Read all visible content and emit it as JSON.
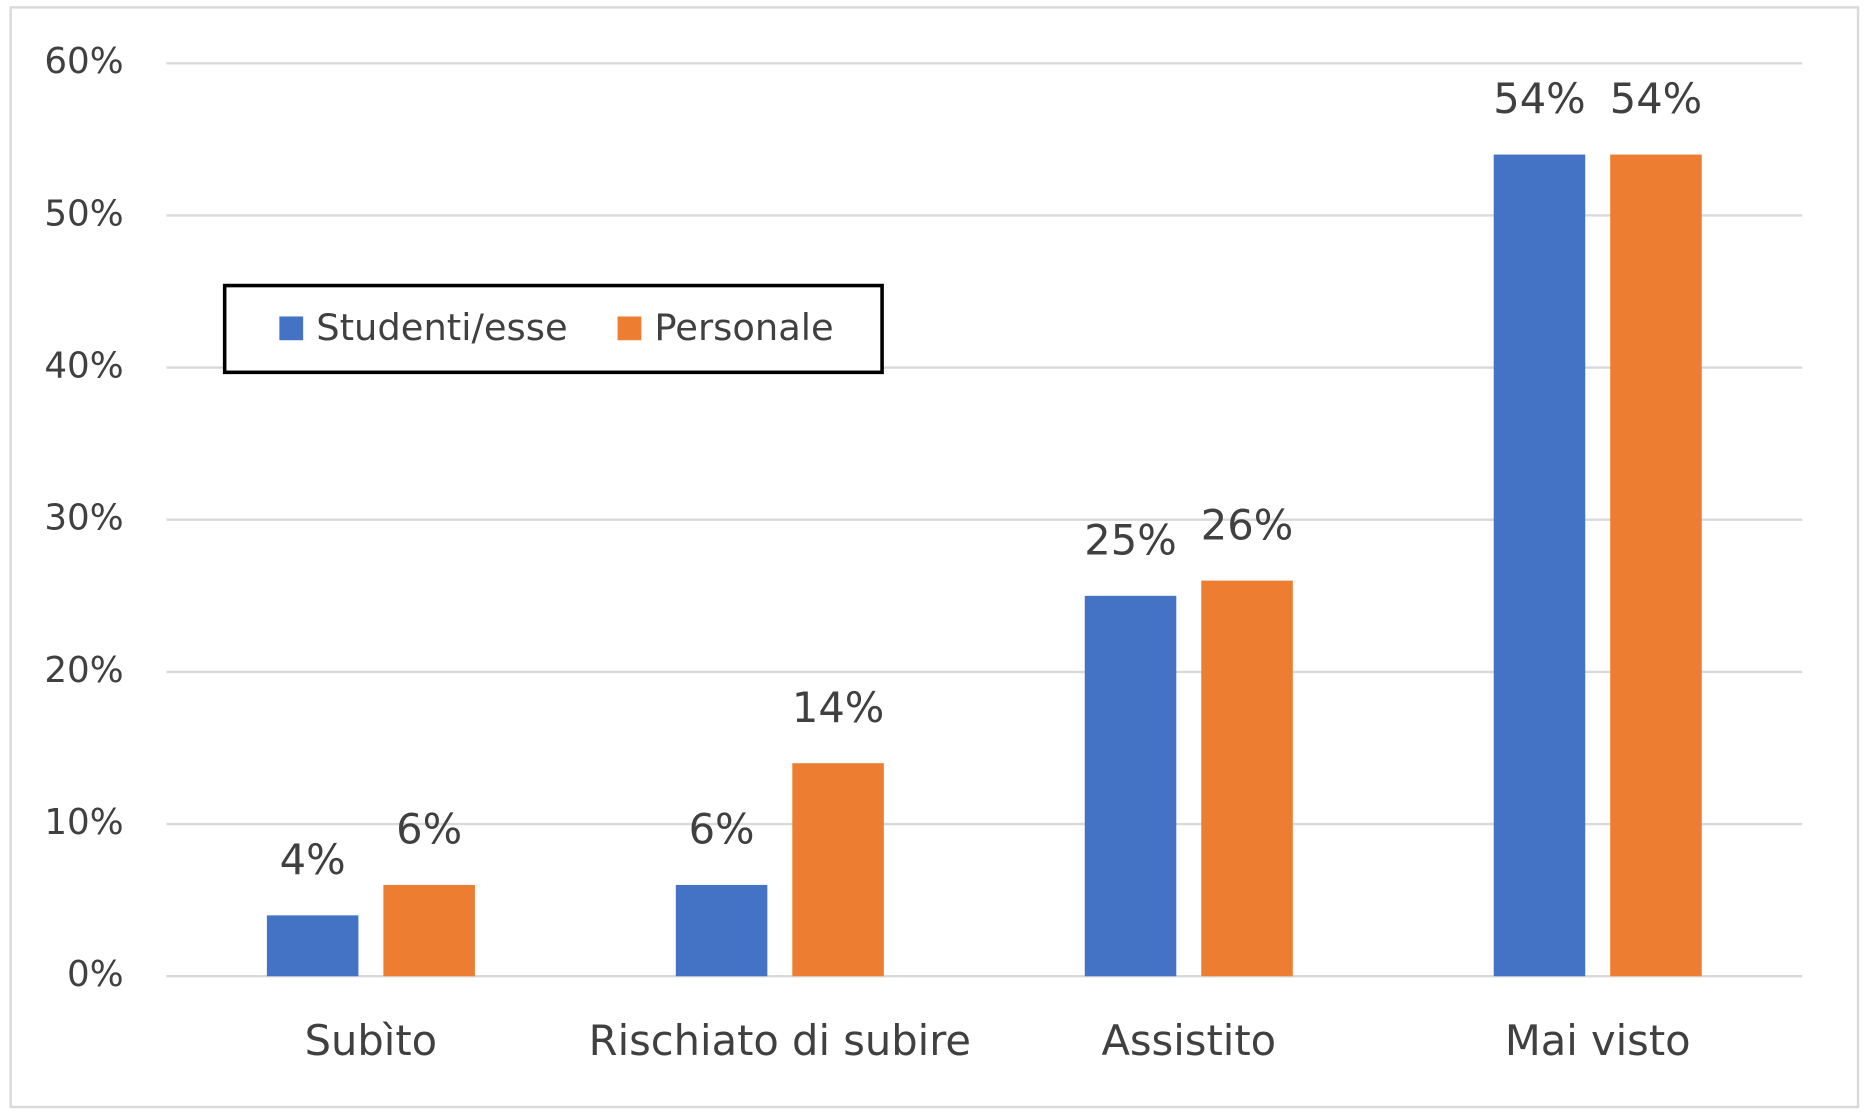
{
  "chart_data": {
    "type": "bar",
    "categories": [
      "Subìto",
      "Rischiato di subire",
      "Assistito",
      "Mai visto"
    ],
    "series": [
      {
        "name": "Studenti/esse",
        "color": "#4472c4",
        "values": [
          4,
          6,
          25,
          54
        ],
        "value_labels": [
          "4%",
          "6%",
          "25%",
          "54%"
        ]
      },
      {
        "name": "Personale",
        "color": "#ed7d31",
        "values": [
          6,
          14,
          26,
          54
        ],
        "value_labels": [
          "6%",
          "14%",
          "26%",
          "54%"
        ]
      }
    ],
    "ylim": [
      0,
      60
    ],
    "yticks": [
      {
        "value": 0,
        "label": "0%"
      },
      {
        "value": 10,
        "label": "10%"
      },
      {
        "value": 20,
        "label": "20%"
      },
      {
        "value": 30,
        "label": "30%"
      },
      {
        "value": 40,
        "label": "40%"
      },
      {
        "value": 50,
        "label": "50%"
      },
      {
        "value": 60,
        "label": "60%"
      }
    ],
    "grid": true,
    "legend": "upper left"
  }
}
